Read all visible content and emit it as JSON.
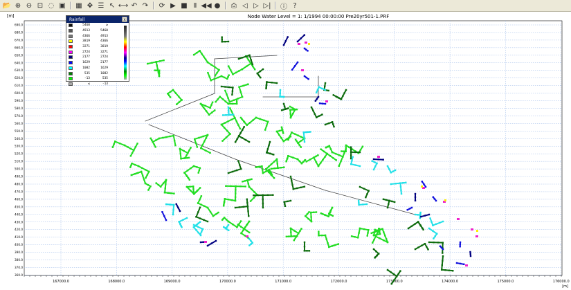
{
  "window": {
    "title": "Node Water Level = 1: 1/1994 00:00:00 Pre20yr501-1.PRF"
  },
  "toolbar": {
    "icons": [
      "open-icon",
      "zoom-in-icon",
      "zoom-out-icon",
      "zoom-window-icon",
      "zoom-prev-icon",
      "zoom-full-icon",
      "grid-icon",
      "pan-icon",
      "layers-icon",
      "select-icon",
      "measure-icon",
      "undo-icon",
      "redo-icon",
      "refresh-icon",
      "play-icon",
      "stop-icon",
      "pause-icon",
      "rewind-icon",
      "record-icon",
      "print-icon",
      "step-back-icon",
      "step-forward-icon",
      "step-end-icon",
      "info-icon",
      "help-icon"
    ]
  },
  "axes": {
    "y_unit": "[m]",
    "x_unit": "[m]",
    "y_ticks": [
      "690.0",
      "680.0",
      "670.0",
      "660.0",
      "650.0",
      "640.0",
      "630.0",
      "620.0",
      "610.0",
      "600.0",
      "590.0",
      "580.0",
      "570.0",
      "560.0",
      "550.0",
      "540.0",
      "530.0",
      "520.0",
      "510.0",
      "500.0",
      "490.0",
      "480.0",
      "470.0",
      "460.0",
      "450.0",
      "440.0",
      "430.0",
      "420.0",
      "410.0",
      "400.0",
      "390.0",
      "380.0",
      "370.0",
      "360.0"
    ],
    "x_ticks": [
      "167000.0",
      "168000.0",
      "169000.0",
      "170000.0",
      "171000.0",
      "172000.0",
      "173000.0",
      "174000.0",
      "175000.0",
      "176000.0"
    ]
  },
  "legend": {
    "title": "Rainfall",
    "rows": [
      {
        "a": "5460",
        "b": "≥",
        "color": "#111111"
      },
      {
        "a": "4913",
        "b": "5460",
        "color": "#555555"
      },
      {
        "a": "4366",
        "b": "4913",
        "color": "#777777"
      },
      {
        "a": "3819",
        "b": "4366",
        "color": "#ffff00"
      },
      {
        "a": "3271",
        "b": "3819",
        "color": "#ff0000"
      },
      {
        "a": "2724",
        "b": "3271",
        "color": "#ff00ff"
      },
      {
        "a": "2177",
        "b": "2724",
        "color": "#000080"
      },
      {
        "a": "1629",
        "b": "2177",
        "color": "#0000ff"
      },
      {
        "a": "1082",
        "b": "1629",
        "color": "#00ffff"
      },
      {
        "a": "535",
        "b": "1082",
        "color": "#008000"
      },
      {
        "a": "-13",
        "b": "535",
        "color": "#00ff00"
      },
      {
        "a": "≤",
        "b": "-13",
        "color": "#aaaaaa"
      }
    ]
  },
  "colors": {
    "light_green": "#22dd22",
    "dark_green": "#0d6b0d",
    "cyan": "#22e0e8",
    "blue": "#1010dd",
    "navy": "#000080",
    "magenta": "#ee22cc",
    "yellow": "#ffee00",
    "pipe": "#444444"
  }
}
